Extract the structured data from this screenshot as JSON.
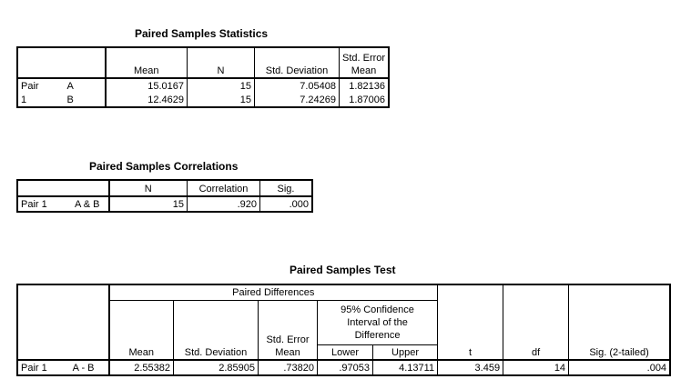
{
  "stats": {
    "title": "Paired Samples Statistics",
    "headers": {
      "mean": "Mean",
      "n": "N",
      "sd": "Std. Deviation",
      "sem_line1": "Std. Error",
      "sem_line2": "Mean"
    },
    "pair_label_line1": "Pair",
    "pair_label_line2": "1",
    "rows": [
      {
        "var": "A",
        "mean": "15.0167",
        "n": "15",
        "sd": "7.05408",
        "sem": "1.82136"
      },
      {
        "var": "B",
        "mean": "12.4629",
        "n": "15",
        "sd": "7.24269",
        "sem": "1.87006"
      }
    ]
  },
  "corr": {
    "title": "Paired Samples Correlations",
    "headers": {
      "n": "N",
      "corr": "Correlation",
      "sig": "Sig."
    },
    "row": {
      "pair": "Pair 1",
      "vars": "A & B",
      "n": "15",
      "corr": ".920",
      "sig": ".000"
    }
  },
  "test": {
    "title": "Paired Samples Test",
    "headers": {
      "paired_diff": "Paired Differences",
      "ci_line1": "95% Confidence",
      "ci_line2": "Interval of the",
      "ci_line3": "Difference",
      "mean": "Mean",
      "sd": "Std. Deviation",
      "sem_line1": "Std. Error",
      "sem_line2": "Mean",
      "lower": "Lower",
      "upper": "Upper",
      "t": "t",
      "df": "df",
      "sig": "Sig. (2-tailed)"
    },
    "row": {
      "pair": "Pair 1",
      "vars": "A - B",
      "mean": "2.55382",
      "sd": "2.85905",
      "sem": ".73820",
      "lower": ".97053",
      "upper": "4.13711",
      "t": "3.459",
      "df": "14",
      "sig": ".004"
    }
  }
}
